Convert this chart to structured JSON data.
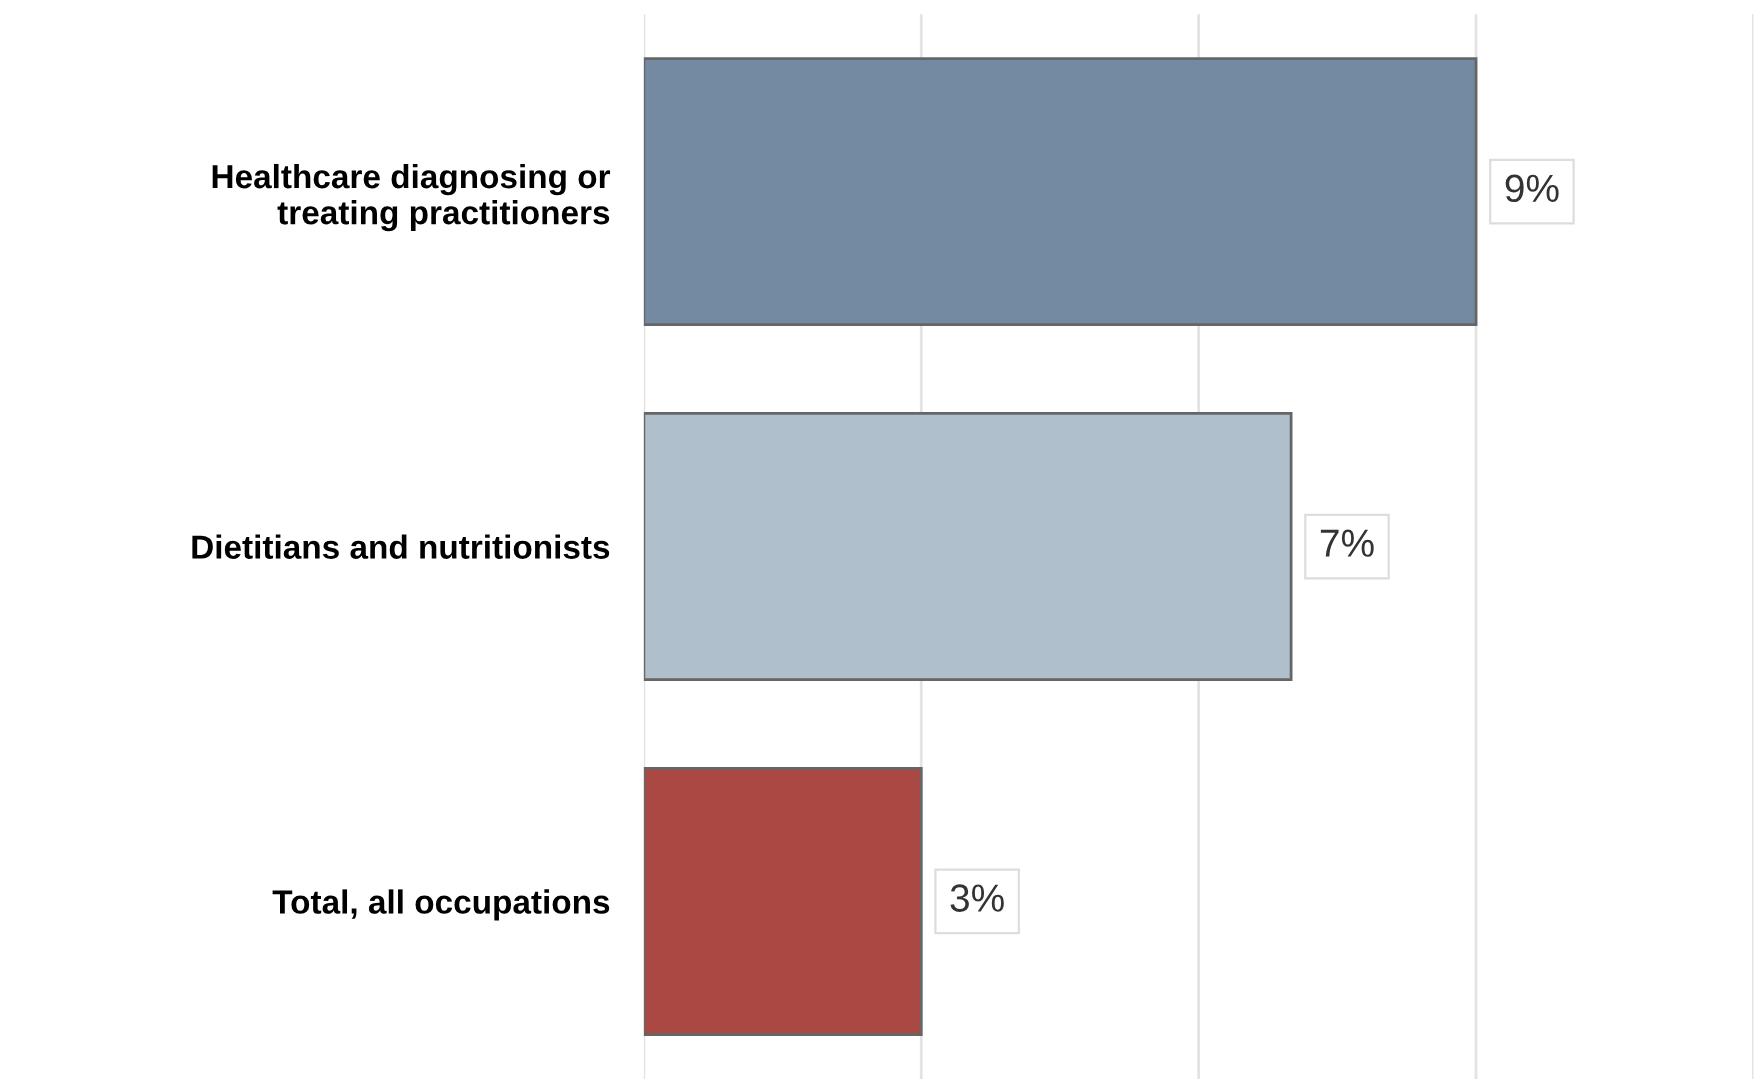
{
  "chart_data": {
    "type": "bar",
    "orientation": "horizontal",
    "categories": [
      "Healthcare diagnosing or\ntreating practitioners",
      "Dietitians and nutritionists",
      "Total, all occupations"
    ],
    "values": [
      9,
      7,
      3
    ],
    "value_labels": [
      "9%",
      "7%",
      "3%"
    ],
    "colors": [
      "#748aa3",
      "#afbfcc",
      "#aa4844"
    ],
    "xlim": [
      0,
      12
    ],
    "xticks": [
      {
        "value": 0,
        "label": null
      },
      {
        "value": 3,
        "label": null
      },
      {
        "value": 6,
        "label": null
      },
      {
        "value": 9,
        "label": null
      },
      {
        "value": 12,
        "label": null
      }
    ],
    "grid": "x",
    "tick_labels": "y"
  }
}
